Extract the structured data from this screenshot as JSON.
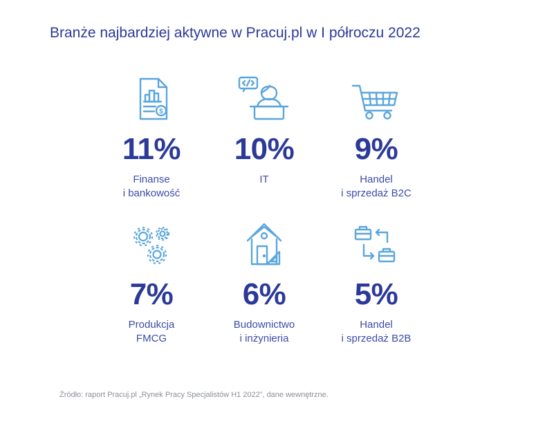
{
  "chart_data": {
    "type": "table",
    "title": "Branże najbardziej aktywne w Pracuj.pl w I półroczu 2022",
    "items": [
      {
        "value": "11%",
        "label_lines": [
          "Finanse",
          "i bankowość"
        ],
        "icon": "finance-document-icon"
      },
      {
        "value": "10%",
        "label_lines": [
          "IT"
        ],
        "icon": "programmer-icon"
      },
      {
        "value": "9%",
        "label_lines": [
          "Handel",
          "i sprzedaż B2C"
        ],
        "icon": "shopping-cart-icon"
      },
      {
        "value": "7%",
        "label_lines": [
          "Produkcja",
          "FMCG"
        ],
        "icon": "gears-icon"
      },
      {
        "value": "6%",
        "label_lines": [
          "Budownictwo",
          "i inżynieria"
        ],
        "icon": "house-construction-icon"
      },
      {
        "value": "5%",
        "label_lines": [
          "Handel",
          "i sprzedaż B2B"
        ],
        "icon": "b2b-exchange-icon"
      }
    ],
    "source": "Źródło: raport Pracuj.pl „Rynek Pracy Specjalistów H1 2022”, dane wewnętrzne."
  },
  "colors": {
    "title": "#2b3a98",
    "value": "#2b3a98",
    "icon": "#5aa6dc",
    "source": "#8a8f99"
  }
}
